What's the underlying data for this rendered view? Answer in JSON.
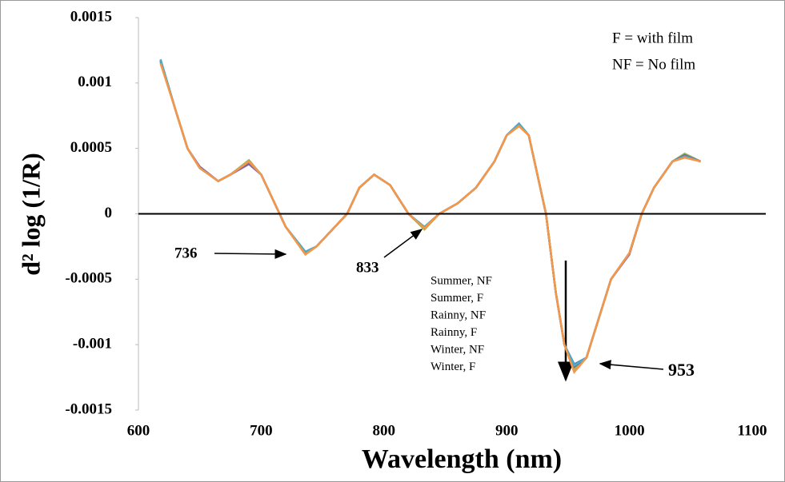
{
  "chart_data": {
    "type": "line",
    "x_label": "Wavelength (nm)",
    "y_label": "d² log (1/R)",
    "xlim": [
      600,
      1100
    ],
    "xticks": [
      600,
      700,
      800,
      900,
      1000,
      1100
    ],
    "ylim": [
      -0.0015,
      0.0015
    ],
    "yticks": [
      -0.0015,
      -0.001,
      -0.0005,
      0,
      0.0005,
      0.001,
      0.0015
    ],
    "x": [
      618,
      630,
      640,
      650,
      665,
      675,
      690,
      700,
      710,
      720,
      736,
      745,
      755,
      770,
      780,
      792,
      805,
      820,
      833,
      845,
      860,
      875,
      890,
      900,
      910,
      918,
      925,
      932,
      940,
      947,
      955,
      965,
      975,
      985,
      1000,
      1010,
      1020,
      1035,
      1045,
      1058
    ],
    "series": [
      {
        "name": "Summer, NF",
        "color": "#4f81bd",
        "values": [
          0.00118,
          0.0008,
          0.0005,
          0.00035,
          0.00025,
          0.0003,
          0.00039,
          0.0003,
          0.0001,
          -0.0001,
          -0.00029,
          -0.00025,
          -0.00015,
          0,
          0.0002,
          0.0003,
          0.00022,
          0,
          -0.00011,
          0,
          8e-05,
          0.0002,
          0.0004,
          0.0006,
          0.00069,
          0.0006,
          0.0003,
          0,
          -0.0006,
          -0.001,
          -0.00115,
          -0.0011,
          -0.0008,
          -0.0005,
          -0.0003,
          0,
          0.0002,
          0.0004,
          0.00044,
          0.0004
        ]
      },
      {
        "name": "Summer, F",
        "color": "#c0504d",
        "values": [
          0.00117,
          0.0008,
          0.0005,
          0.00035,
          0.00025,
          0.0003,
          0.0004,
          0.0003,
          0.0001,
          -0.0001,
          -0.0003,
          -0.00025,
          -0.00015,
          0,
          0.0002,
          0.0003,
          0.00022,
          0,
          -0.00011,
          0,
          8e-05,
          0.0002,
          0.0004,
          0.0006,
          0.00068,
          0.0006,
          0.0003,
          0,
          -0.0006,
          -0.001,
          -0.00118,
          -0.0011,
          -0.0008,
          -0.0005,
          -0.0003,
          0,
          0.0002,
          0.0004,
          0.00045,
          0.0004
        ]
      },
      {
        "name": "Rainny, NF",
        "color": "#9bbb59",
        "values": [
          0.00116,
          0.0008,
          0.0005,
          0.00035,
          0.00025,
          0.0003,
          0.00041,
          0.0003,
          0.0001,
          -0.0001,
          -0.00031,
          -0.00025,
          -0.00015,
          0,
          0.0002,
          0.0003,
          0.00022,
          0,
          -0.00012,
          0,
          8e-05,
          0.0002,
          0.0004,
          0.0006,
          0.00067,
          0.0006,
          0.0003,
          0,
          -0.0006,
          -0.001,
          -0.00119,
          -0.0011,
          -0.0008,
          -0.0005,
          -0.0003,
          0,
          0.0002,
          0.0004,
          0.00046,
          0.0004
        ]
      },
      {
        "name": "Rainny, F",
        "color": "#8064a2",
        "values": [
          0.00117,
          0.0008,
          0.0005,
          0.00036,
          0.00025,
          0.0003,
          0.00038,
          0.0003,
          0.0001,
          -0.0001,
          -0.0003,
          -0.00025,
          -0.00015,
          0,
          0.0002,
          0.0003,
          0.00022,
          0,
          -0.00011,
          0,
          8e-05,
          0.0002,
          0.0004,
          0.0006,
          0.00068,
          0.0006,
          0.0003,
          0,
          -0.0006,
          -0.001,
          -0.00117,
          -0.0011,
          -0.0008,
          -0.0005,
          -0.00031,
          0,
          0.0002,
          0.0004,
          0.00045,
          0.0004
        ]
      },
      {
        "name": "Winter, NF",
        "color": "#4bacc6",
        "values": [
          0.00118,
          0.0008,
          0.0005,
          0.00035,
          0.00025,
          0.0003,
          0.0004,
          0.0003,
          0.0001,
          -0.0001,
          -0.00029,
          -0.00025,
          -0.00015,
          0,
          0.0002,
          0.0003,
          0.00022,
          0,
          -0.0001,
          0,
          8e-05,
          0.0002,
          0.0004,
          0.0006,
          0.00069,
          0.0006,
          0.0003,
          0,
          -0.0006,
          -0.001,
          -0.00116,
          -0.0011,
          -0.0008,
          -0.0005,
          -0.0003,
          0,
          0.0002,
          0.0004,
          0.00044,
          0.0004
        ]
      },
      {
        "name": "Winter, F",
        "color": "#f79646",
        "values": [
          0.00115,
          0.0008,
          0.0005,
          0.00035,
          0.00025,
          0.0003,
          0.0004,
          0.0003,
          0.0001,
          -0.0001,
          -0.00031,
          -0.00025,
          -0.00015,
          0,
          0.0002,
          0.0003,
          0.00022,
          0,
          -0.00011,
          0,
          8e-05,
          0.0002,
          0.0004,
          0.0006,
          0.00067,
          0.0006,
          0.0003,
          0,
          -0.0006,
          -0.001,
          -0.00121,
          -0.0011,
          -0.0008,
          -0.0005,
          -0.0003,
          0,
          0.0002,
          0.0004,
          0.00043,
          0.0004
        ]
      }
    ],
    "annotations": [
      "F = with film",
      "NF = No film",
      "736",
      "833",
      "953"
    ]
  }
}
